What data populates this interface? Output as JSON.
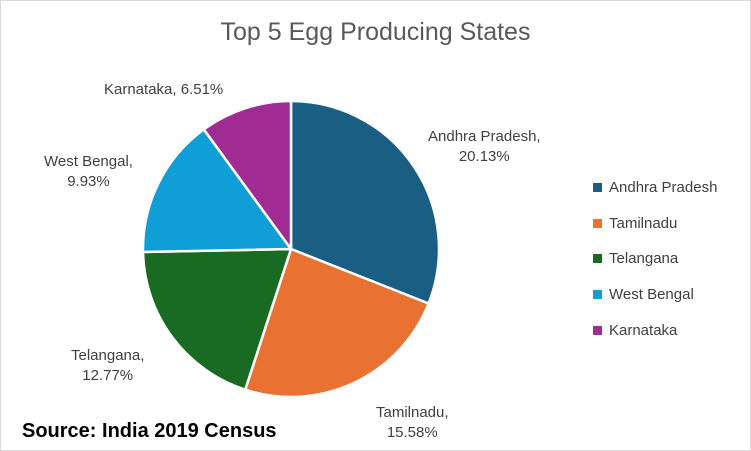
{
  "chart_data": {
    "type": "pie",
    "title": "Top 5 Egg Producing States",
    "slices": [
      {
        "name": "Andhra Pradesh",
        "value": 20.13,
        "label": "20.13%",
        "color": "#1a5e83"
      },
      {
        "name": "Tamilnadu",
        "value": 15.58,
        "label": "15.58%",
        "color": "#e97132"
      },
      {
        "name": "Telangana",
        "value": 12.77,
        "label": "12.77%",
        "color": "#196b24"
      },
      {
        "name": "West Bengal",
        "value": 9.93,
        "label": "9.93%",
        "color": "#0f9ed5"
      },
      {
        "name": "Karnataka",
        "value": 6.51,
        "label": "6.51%",
        "color": "#a02b93"
      }
    ],
    "legend_position": "right",
    "source": "Source: India 2019 Census"
  }
}
